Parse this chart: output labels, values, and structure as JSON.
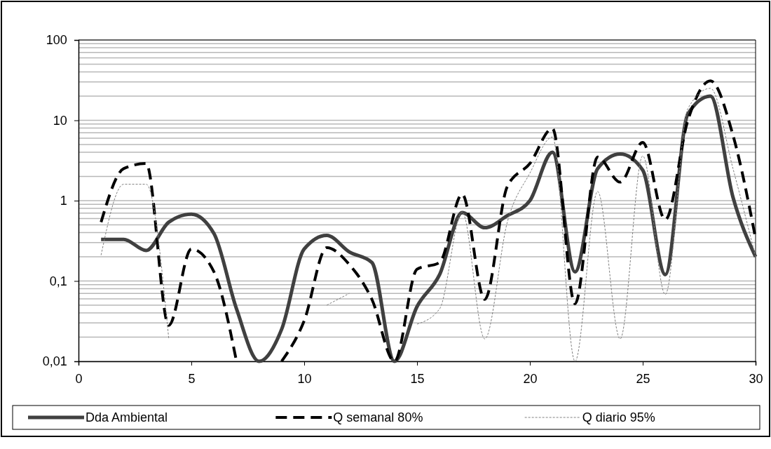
{
  "chart_data": {
    "type": "line",
    "x": [
      1,
      2,
      3,
      4,
      5,
      6,
      7,
      8,
      9,
      10,
      11,
      12,
      13,
      14,
      15,
      16,
      17,
      18,
      19,
      20,
      21,
      22,
      23,
      24,
      25,
      26,
      27,
      28,
      29,
      30
    ],
    "series": [
      {
        "name": "Dda Ambiental",
        "color": "#404040",
        "line_style": "solid",
        "values": [
          0.33,
          0.33,
          0.24,
          0.54,
          0.68,
          0.39,
          0.045,
          0.01,
          0.025,
          0.25,
          0.37,
          0.23,
          0.17,
          0.01,
          0.048,
          0.12,
          0.71,
          0.46,
          0.65,
          1.0,
          4.0,
          0.13,
          2.5,
          3.8,
          2.4,
          0.12,
          12,
          20,
          1.1,
          0.2
        ]
      },
      {
        "name": "Q semanal 80%",
        "color": "#000000",
        "line_style": "dashed",
        "values": [
          0.54,
          2.5,
          2.9,
          0.028,
          0.25,
          0.13,
          0.01,
          null,
          0.01,
          0.032,
          0.26,
          0.16,
          0.059,
          0.01,
          0.14,
          0.17,
          1.2,
          0.059,
          1.5,
          2.9,
          7.9,
          0.052,
          3.5,
          1.7,
          5.3,
          0.58,
          10,
          31,
          6.5,
          0.34
        ]
      },
      {
        "name": "Q diario 95%",
        "color": "#808080",
        "line_style": "dotted",
        "values": [
          0.21,
          1.6,
          1.6,
          0.019,
          null,
          null,
          null,
          null,
          null,
          null,
          0.05,
          0.07,
          null,
          null,
          0.029,
          0.045,
          0.72,
          0.019,
          0.54,
          2.2,
          6.2,
          0.01,
          1.3,
          0.019,
          3.6,
          0.068,
          14,
          25,
          2.5,
          0.2
        ]
      }
    ],
    "xlim": [
      0,
      30
    ],
    "xticks": [
      0,
      5,
      10,
      15,
      20,
      25,
      30
    ],
    "log": "y",
    "ylim": [
      0.01,
      100
    ],
    "yticks": [
      {
        "value": 0.01,
        "label": "0,01"
      },
      {
        "value": 0.1,
        "label": "0,1"
      },
      1,
      10,
      100
    ],
    "grid": "y",
    "legend": "bottom"
  }
}
